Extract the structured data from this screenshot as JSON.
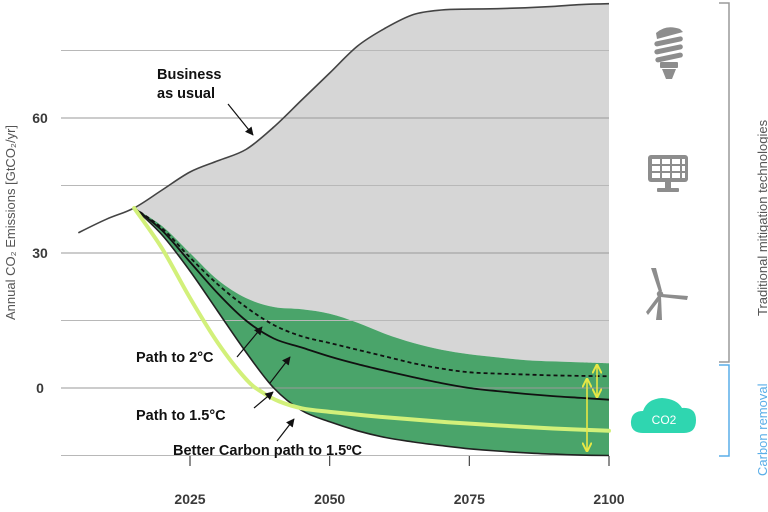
{
  "chart_data": {
    "type": "line",
    "xlabel": "",
    "ylabel": "Annual CO₂ Emissions [GtCO₂/yr]",
    "xlim": [
      2005,
      2100
    ],
    "ylim": [
      -15,
      85
    ],
    "x_ticks": [
      "2025",
      "2050",
      "2075",
      "2100"
    ],
    "y_ticks": [
      "0",
      "30",
      "60"
    ],
    "grid": true,
    "series": [
      {
        "name": "Business as usual",
        "x": [
          2005,
          2010,
          2015,
          2020,
          2025,
          2030,
          2035,
          2040,
          2045,
          2050,
          2055,
          2060,
          2065,
          2070,
          2075,
          2080,
          2085,
          2090,
          2095,
          2100
        ],
        "values": [
          34.5,
          37.5,
          40,
          44,
          48,
          50.5,
          53,
          58,
          64,
          70,
          76,
          80,
          83,
          84,
          84.2,
          84.3,
          84.5,
          84.8,
          85.2,
          85.4
        ]
      },
      {
        "name": "Path to 2°C",
        "x": [
          2015,
          2020,
          2025,
          2030,
          2035,
          2040,
          2045,
          2050,
          2055,
          2060,
          2065,
          2070,
          2075,
          2080,
          2085,
          2090,
          2095,
          2100
        ],
        "values": [
          40,
          35.5,
          29,
          23,
          18,
          14,
          11.5,
          10,
          8.5,
          7,
          5.5,
          4.3,
          3.5,
          3.2,
          3,
          2.8,
          2.7,
          2.6
        ]
      },
      {
        "name": "Path to 1.5°C",
        "x": [
          2015,
          2020,
          2025,
          2030,
          2035,
          2040,
          2045,
          2050,
          2055,
          2060,
          2065,
          2070,
          2075,
          2080,
          2085,
          2090,
          2095,
          2100
        ],
        "values": [
          40,
          35,
          28,
          21,
          15,
          11,
          9,
          7,
          5.3,
          3.8,
          2.4,
          1.1,
          0,
          -0.7,
          -1.3,
          -1.8,
          -2.2,
          -2.6
        ]
      },
      {
        "name": "Better Carbon path to 1.5ºC",
        "x": [
          2015,
          2020,
          2025,
          2030,
          2035,
          2038,
          2041,
          2045,
          2050,
          2060,
          2070,
          2080,
          2090,
          2100
        ],
        "values": [
          40,
          31,
          20,
          10,
          2,
          -1,
          -3,
          -4.5,
          -5.3,
          -6.5,
          -7.5,
          -8.3,
          -9,
          -9.5
        ]
      }
    ],
    "band_upper": {
      "x": [
        2015,
        2020,
        2025,
        2030,
        2035,
        2040,
        2045,
        2050,
        2055,
        2060,
        2065,
        2070,
        2075,
        2080,
        2085,
        2090,
        2095,
        2100
      ],
      "values": [
        40,
        36,
        30,
        24,
        20,
        18,
        17.5,
        16.5,
        14.5,
        12,
        10,
        8.5,
        7.5,
        6.8,
        6.2,
        5.9,
        5.7,
        5.5
      ]
    },
    "band_lower": {
      "x": [
        2015,
        2020,
        2025,
        2030,
        2035,
        2040,
        2045,
        2050,
        2055,
        2060,
        2065,
        2070,
        2075,
        2080,
        2085,
        2090,
        2095,
        2100
      ],
      "values": [
        40,
        34,
        26,
        17,
        8,
        0,
        -5,
        -7.5,
        -9.5,
        -11,
        -12,
        -12.8,
        -13.5,
        -14,
        -14.4,
        -14.7,
        -14.9,
        -15
      ]
    },
    "annotations": [
      "Business",
      "as usual",
      "Path to 2°C",
      "Path to 1.5°C",
      "Better Carbon path to 1.5ºC"
    ],
    "side_labels": [
      "Traditional mitigation technologies",
      "Carbon removal"
    ],
    "badge": "CO2"
  },
  "colors": {
    "bau_fill": "#d6d6d6",
    "band_fill": "#4aa46a",
    "better_line": "#d2f07a",
    "removal_blue": "#5aaee8",
    "cloud": "#2fd6b0",
    "icon_gray": "#8d8d8d"
  },
  "icons": [
    "lightbulb-icon",
    "solar-panel-icon",
    "wind-turbine-icon",
    "cloud-icon"
  ]
}
